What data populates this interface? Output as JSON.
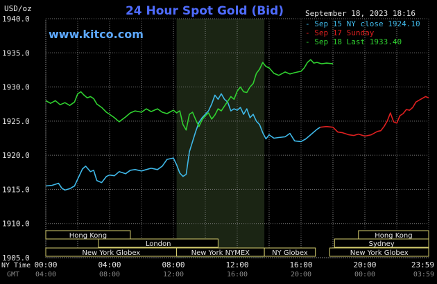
{
  "header": {
    "unit": "USD/oz",
    "title": "24 Hour Spot Gold (Bid)",
    "site": "www.kitco.com",
    "datetime": "September 18, 2023 18:16"
  },
  "colors": {
    "background": "#000000",
    "grid": "#7a7a7a",
    "title": "#4f6cff",
    "site": "#5da8ff",
    "text": "#e6e6e6",
    "gmt_text": "#8a8a8a",
    "session_box": "#d8d070",
    "highlight": "#1b2514",
    "series_sep15": "#3fb8e8",
    "series_sep17": "#e02020",
    "series_sep18": "#30d030"
  },
  "chart_data": {
    "type": "line",
    "title": "24 Hour Spot Gold (Bid)",
    "ylabel": "USD/oz",
    "xlabel": "",
    "ylim": [
      1905,
      1940
    ],
    "yticks": [
      "1940.0",
      "1935.0",
      "1930.0",
      "1925.0",
      "1920.0",
      "1915.0",
      "1910.0",
      "1905.0"
    ],
    "x_unit": "hours",
    "xlim": [
      0,
      24
    ],
    "grid": true,
    "legend_placement": "top-right",
    "x_ticks_ny": [
      "00:00",
      "04:00",
      "08:00",
      "12:00",
      "16:00",
      "20:00",
      "23:59"
    ],
    "x_ticks_gmt": [
      "04:00",
      "08:00",
      "12:00",
      "16:00",
      "20:00",
      "00:00",
      "03:59"
    ],
    "ny_label": "NY Time",
    "gmt_label": "GMT",
    "highlight_range": [
      8.2,
      13.7
    ],
    "legend": [
      {
        "label": "Sep 15 NY close 1924.10",
        "color": "#3fb8e8"
      },
      {
        "label": "Sep 17 Sunday",
        "color": "#e02020"
      },
      {
        "label": "Sep 18 Last 1933.40",
        "color": "#30d030"
      }
    ],
    "series": [
      {
        "name": "Sep 15 NY close 1924.10",
        "color": "#3fb8e8",
        "x": [
          0,
          0.4,
          0.8,
          1.0,
          1.2,
          1.5,
          1.8,
          2.0,
          2.3,
          2.5,
          2.8,
          3.0,
          3.2,
          3.5,
          3.8,
          4.0,
          4.3,
          4.6,
          5.0,
          5.3,
          5.6,
          6.0,
          6.3,
          6.6,
          7.0,
          7.3,
          7.6,
          8.0,
          8.2,
          8.4,
          8.6,
          8.8,
          9.0,
          9.2,
          9.4,
          9.6,
          9.8,
          10.0,
          10.2,
          10.4,
          10.6,
          10.8,
          11.0,
          11.2,
          11.4,
          11.6,
          11.8,
          12.0,
          12.2,
          12.4,
          12.6,
          12.8,
          13.0,
          13.2,
          13.4,
          13.6,
          13.8,
          14.0,
          14.3,
          14.6,
          15.0,
          15.3,
          15.6,
          16.0,
          16.3,
          16.6,
          17.0,
          17.2
        ],
        "values": [
          1915.5,
          1915.6,
          1915.9,
          1915.2,
          1914.9,
          1915.1,
          1915.5,
          1916.5,
          1918.0,
          1918.4,
          1917.6,
          1917.8,
          1916.3,
          1916.0,
          1916.9,
          1917.1,
          1917.0,
          1917.6,
          1917.3,
          1917.8,
          1917.9,
          1917.7,
          1917.9,
          1918.1,
          1917.9,
          1918.4,
          1919.4,
          1919.6,
          1918.6,
          1917.4,
          1916.9,
          1917.2,
          1920.5,
          1922.0,
          1923.5,
          1924.8,
          1925.5,
          1926.0,
          1926.5,
          1927.5,
          1928.8,
          1928.2,
          1929.0,
          1928.2,
          1927.8,
          1926.5,
          1926.8,
          1926.6,
          1927.0,
          1926.0,
          1926.8,
          1925.5,
          1926.0,
          1925.0,
          1924.5,
          1923.3,
          1922.4,
          1923.0,
          1922.5,
          1922.6,
          1922.7,
          1923.2,
          1922.1,
          1922.0,
          1922.4,
          1923.0,
          1923.8,
          1924.1
        ]
      },
      {
        "name": "Sep 17 Sunday",
        "color": "#e02020",
        "x": [
          17.2,
          17.6,
          18.0,
          18.3,
          18.6,
          19.0,
          19.3,
          19.6,
          20.0,
          20.4,
          20.8,
          21.0,
          21.2,
          21.4,
          21.6,
          21.8,
          22.0,
          22.2,
          22.4,
          22.6,
          22.8,
          23.0,
          23.2,
          23.5,
          23.8,
          24.0
        ],
        "values": [
          1924.1,
          1924.2,
          1924.1,
          1923.4,
          1923.3,
          1923.0,
          1922.9,
          1923.1,
          1922.8,
          1923.0,
          1923.5,
          1923.6,
          1924.2,
          1925.0,
          1926.2,
          1924.9,
          1924.7,
          1925.8,
          1926.1,
          1926.7,
          1926.6,
          1927.0,
          1927.8,
          1928.2,
          1928.6,
          1928.4
        ]
      },
      {
        "name": "Sep 18 Last 1933.40",
        "color": "#30d030",
        "x": [
          0,
          0.3,
          0.6,
          0.9,
          1.2,
          1.5,
          1.8,
          2.0,
          2.2,
          2.4,
          2.6,
          2.8,
          3.0,
          3.2,
          3.5,
          3.8,
          4.0,
          4.3,
          4.6,
          5.0,
          5.3,
          5.6,
          6.0,
          6.3,
          6.6,
          7.0,
          7.3,
          7.6,
          8.0,
          8.2,
          8.4,
          8.6,
          8.8,
          9.0,
          9.2,
          9.4,
          9.6,
          9.8,
          10.0,
          10.2,
          10.4,
          10.6,
          10.8,
          11.0,
          11.2,
          11.4,
          11.6,
          11.8,
          12.0,
          12.2,
          12.4,
          12.6,
          12.8,
          13.0,
          13.2,
          13.4,
          13.6,
          13.8,
          14.0,
          14.3,
          14.6,
          15.0,
          15.3,
          15.6,
          16.0,
          16.2,
          16.4,
          16.6,
          16.8,
          17.0,
          17.3,
          17.6,
          18.0
        ],
        "values": [
          1928.0,
          1927.6,
          1928.0,
          1927.4,
          1927.7,
          1927.3,
          1927.8,
          1929.0,
          1929.3,
          1928.8,
          1928.4,
          1928.6,
          1928.3,
          1927.5,
          1927.0,
          1926.3,
          1926.0,
          1925.5,
          1924.9,
          1925.6,
          1926.2,
          1926.5,
          1926.3,
          1926.8,
          1926.4,
          1926.8,
          1926.3,
          1926.1,
          1926.6,
          1926.2,
          1926.5,
          1924.5,
          1923.7,
          1926.0,
          1926.3,
          1925.2,
          1924.2,
          1925.2,
          1925.8,
          1926.2,
          1925.3,
          1925.9,
          1926.8,
          1926.5,
          1927.2,
          1927.9,
          1928.6,
          1928.2,
          1929.4,
          1930.0,
          1929.3,
          1929.2,
          1930.0,
          1930.5,
          1932.0,
          1932.6,
          1933.6,
          1933.0,
          1932.8,
          1932.0,
          1931.7,
          1932.2,
          1931.9,
          1932.1,
          1932.3,
          1932.8,
          1933.6,
          1934.0,
          1933.5,
          1933.6,
          1933.4,
          1933.5,
          1933.4
        ]
      }
    ],
    "sessions": [
      {
        "label": "Hong Kong",
        "start": 0,
        "end": 5.3,
        "row": 0
      },
      {
        "label": "London",
        "start": 3.3,
        "end": 10.8,
        "row": 1
      },
      {
        "label": "New York Globex",
        "start": 0,
        "end": 8.2,
        "row": 2
      },
      {
        "label": "New York NYMEX",
        "start": 8.2,
        "end": 13.7,
        "row": 2
      },
      {
        "label": "NY Globex",
        "start": 13.7,
        "end": 16.9,
        "row": 2
      },
      {
        "label": "Hong Kong",
        "start": 19.6,
        "end": 24,
        "row": 0
      },
      {
        "label": "Sydney",
        "start": 18.1,
        "end": 24,
        "row": 1
      },
      {
        "label": "New York Globex",
        "start": 17.8,
        "end": 24,
        "row": 2
      }
    ]
  }
}
